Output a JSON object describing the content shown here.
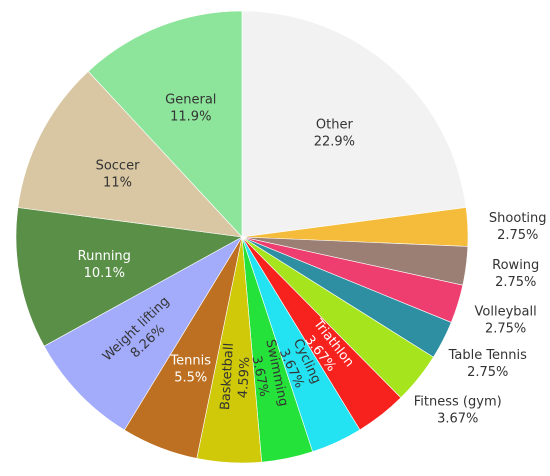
{
  "chart_data": {
    "type": "pie",
    "start_angle_deg": 0,
    "direction": "clockwise",
    "slices": [
      {
        "label": "Other",
        "value": 22.9,
        "value_label": "22.9%",
        "color": "#f2f2f2",
        "label_position": "inside",
        "text_color": "#333333",
        "label_rotate": false
      },
      {
        "label": "Shooting",
        "value": 2.75,
        "value_label": "2.75%",
        "color": "#f5bc3c",
        "label_position": "outside",
        "text_color": "#333333",
        "label_rotate": false
      },
      {
        "label": "Rowing",
        "value": 2.75,
        "value_label": "2.75%",
        "color": "#9c7f74",
        "label_position": "outside",
        "text_color": "#333333",
        "label_rotate": false
      },
      {
        "label": "Volleyball",
        "value": 2.75,
        "value_label": "2.75%",
        "color": "#ee3e70",
        "label_position": "outside",
        "text_color": "#333333",
        "label_rotate": false
      },
      {
        "label": "Table Tennis",
        "value": 2.75,
        "value_label": "2.75%",
        "color": "#2e8fa2",
        "label_position": "outside",
        "text_color": "#333333",
        "label_rotate": false
      },
      {
        "label": "Fitness (gym)",
        "value": 3.67,
        "value_label": "3.67%",
        "color": "#a6e51e",
        "label_position": "outside",
        "text_color": "#333333",
        "label_rotate": false
      },
      {
        "label": "Triathlon",
        "value": 3.67,
        "value_label": "3.67%",
        "color": "#f7211e",
        "label_position": "inside",
        "text_color": "#ffffff",
        "label_rotate": true
      },
      {
        "label": "Cycling",
        "value": 3.67,
        "value_label": "3.67%",
        "color": "#23e2f2",
        "label_position": "inside",
        "text_color": "#333333",
        "label_rotate": true
      },
      {
        "label": "Swimming",
        "value": 3.67,
        "value_label": "3.67%",
        "color": "#25e23a",
        "label_position": "inside",
        "text_color": "#333333",
        "label_rotate": true
      },
      {
        "label": "Basketball",
        "value": 4.59,
        "value_label": "4.59%",
        "color": "#cfc90a",
        "label_position": "inside",
        "text_color": "#333333",
        "label_rotate": true
      },
      {
        "label": "Tennis",
        "value": 5.5,
        "value_label": "5.5%",
        "color": "#bd7021",
        "label_position": "inside",
        "text_color": "#ffffff",
        "label_rotate": false
      },
      {
        "label": "Weight lifting",
        "value": 8.26,
        "value_label": "8.26%",
        "color": "#a3acfb",
        "label_position": "inside",
        "text_color": "#333333",
        "label_rotate": true
      },
      {
        "label": "Running",
        "value": 10.1,
        "value_label": "10.1%",
        "color": "#5a8f48",
        "label_position": "inside",
        "text_color": "#ffffff",
        "label_rotate": false
      },
      {
        "label": "Soccer",
        "value": 11,
        "value_label": "11%",
        "color": "#d8c7a2",
        "label_position": "inside",
        "text_color": "#333333",
        "label_rotate": false
      },
      {
        "label": "General",
        "value": 11.9,
        "value_label": "11.9%",
        "color": "#8de59b",
        "label_position": "inside",
        "text_color": "#333333",
        "label_rotate": false
      }
    ]
  }
}
